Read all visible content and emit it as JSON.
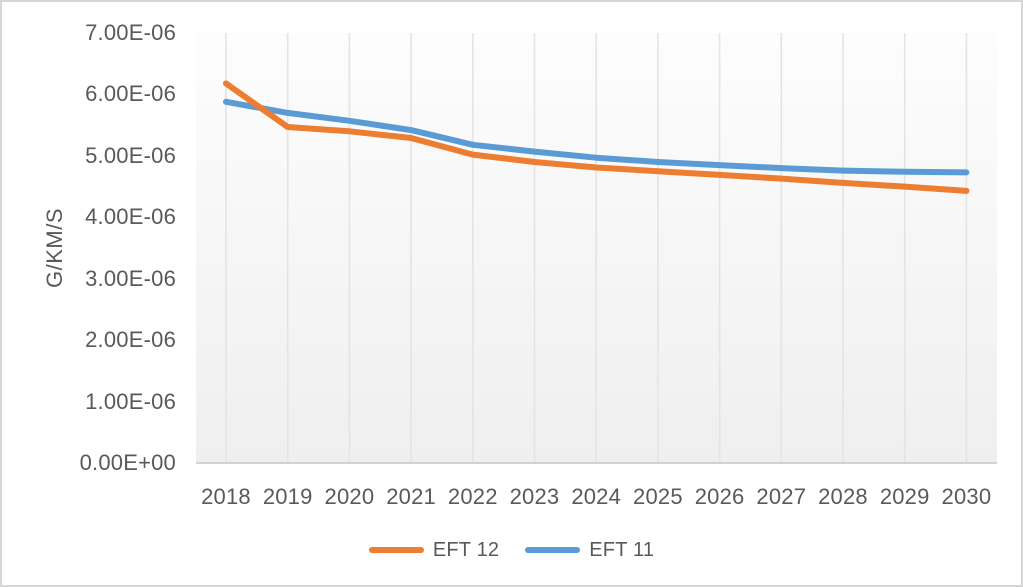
{
  "window": {
    "background": "#FFFFFF",
    "border_color": "#D6D6D6"
  },
  "chart_data": {
    "type": "line",
    "title": "",
    "xlabel": "",
    "ylabel": "G/KM/S",
    "x": [
      "2018",
      "2019",
      "2020",
      "2021",
      "2022",
      "2023",
      "2024",
      "2025",
      "2026",
      "2027",
      "2028",
      "2029",
      "2030"
    ],
    "ylim": [
      0,
      7e-06
    ],
    "y_tick_labels": [
      "0.00E+00",
      "1.00E-06",
      "2.00E-06",
      "3.00E-06",
      "4.00E-06",
      "5.00E-06",
      "6.00E-06",
      "7.00E-06"
    ],
    "grid": "vertical-only",
    "legend_position": "bottom-center",
    "axis_text_color": "#595959",
    "gridline_color": "#E4E4E4",
    "axis_line_color": "#D2D2D2",
    "plot_bg_top": "#FDFDFD",
    "plot_bg_bottom": "#EFEFEF",
    "series": [
      {
        "name": "EFT 12",
        "color": "#ED7D31",
        "values": [
          6.18e-06,
          5.47e-06,
          5.4e-06,
          5.29e-06,
          5.02e-06,
          4.9e-06,
          4.81e-06,
          4.75e-06,
          4.69e-06,
          4.63e-06,
          4.56e-06,
          4.5e-06,
          4.43e-06
        ]
      },
      {
        "name": "EFT 11",
        "color": "#5B9BD5",
        "values": [
          5.88e-06,
          5.7e-06,
          5.57e-06,
          5.42e-06,
          5.18e-06,
          5.07e-06,
          4.97e-06,
          4.9e-06,
          4.85e-06,
          4.8e-06,
          4.76e-06,
          4.74e-06,
          4.73e-06
        ]
      }
    ]
  }
}
